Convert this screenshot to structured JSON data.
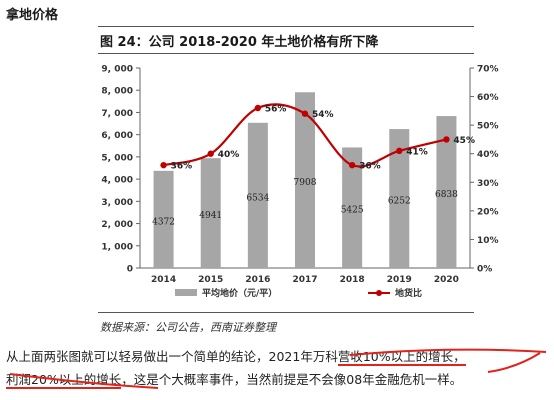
{
  "heading": "拿地价格",
  "figure": {
    "title": "图 24：公司 2018-2020 年土地价格有所下降"
  },
  "source": "数据来源：公司公告，西南证券整理",
  "paragraph": {
    "line1_a": "从上面两张图就可以轻易做出一个简单的结论，2021年万科",
    "line1_b": "营收10%以上的增长，",
    "line2_a": "利润20%以上的增长",
    "line2_b": "，这是个大概率事件，当然前提是不会像08年金融危机一样。"
  },
  "colors": {
    "bar": "#a6a6a6",
    "line": "#c00000",
    "annotation": "#e0231b"
  },
  "chart_data": {
    "type": "bar",
    "categories": [
      "2014",
      "2015",
      "2016",
      "2017",
      "2018",
      "2019",
      "2020"
    ],
    "series": [
      {
        "name": "平均地价（元/平）",
        "type": "bar",
        "axis": "left",
        "values": [
          4372,
          4941,
          6534,
          7908,
          5425,
          6252,
          6838
        ],
        "labels": [
          "4372",
          "4941",
          "6534",
          "7908",
          "5425",
          "6252",
          "6838"
        ]
      },
      {
        "name": "地货比",
        "type": "line",
        "axis": "right",
        "values": [
          36,
          40,
          56,
          54,
          36,
          41,
          45
        ],
        "labels": [
          "36%",
          "40%",
          "56%",
          "54%",
          "36%",
          "41%",
          "45%"
        ]
      }
    ],
    "y_left": {
      "min": 0,
      "max": 9000,
      "ticks": [
        "0",
        "1, 000",
        "2, 000",
        "3, 000",
        "4, 000",
        "5, 000",
        "6, 000",
        "7, 000",
        "8, 000",
        "9, 000"
      ]
    },
    "y_right": {
      "min": 0,
      "max": 70,
      "ticks": [
        "0%",
        "10%",
        "20%",
        "30%",
        "40%",
        "50%",
        "60%",
        "70%"
      ]
    },
    "legend_position": "bottom",
    "grid": false
  }
}
